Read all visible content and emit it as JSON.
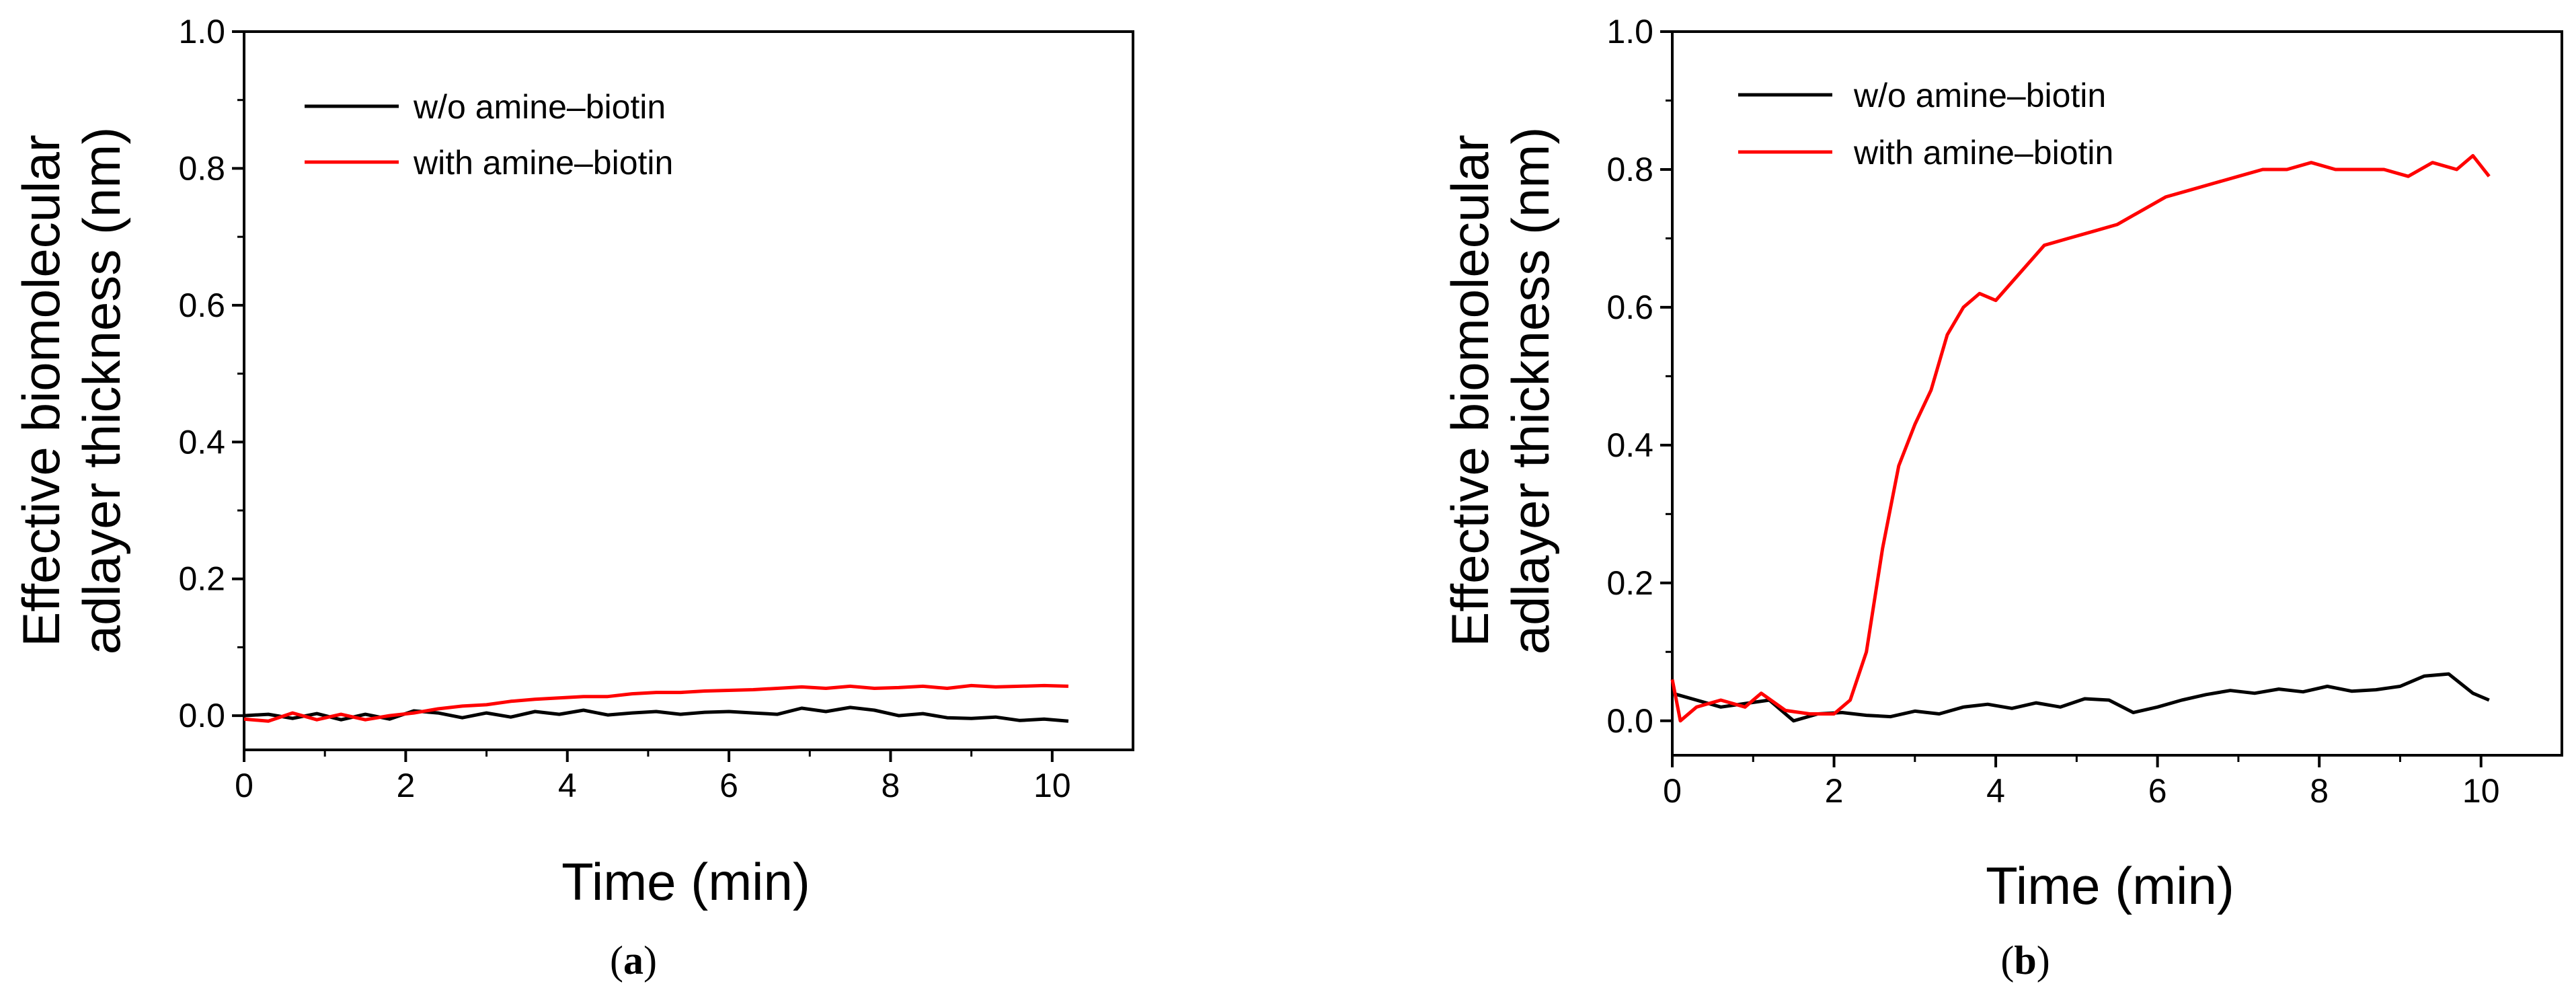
{
  "chart_data": [
    {
      "type": "line",
      "panel_label": "a",
      "xlabel": "Time (min)",
      "ylabel_line1": "Effective biomolecular",
      "ylabel_line2": "adlayer thickness (nm)",
      "xlim": [
        0,
        11
      ],
      "ylim": [
        -0.05,
        1.0
      ],
      "xticks": [
        "0",
        "2",
        "4",
        "6",
        "8",
        "10"
      ],
      "yticks": [
        "0.0",
        "0.2",
        "0.4",
        "0.6",
        "0.8",
        "1.0"
      ],
      "legend_position": "top-left",
      "grid": false,
      "series": [
        {
          "name": "w/o amine–biotin",
          "color": "#000000",
          "x": [
            0,
            0.3,
            0.6,
            0.9,
            1.2,
            1.5,
            1.8,
            2.1,
            2.4,
            2.7,
            3.0,
            3.3,
            3.6,
            3.9,
            4.2,
            4.5,
            4.8,
            5.1,
            5.4,
            5.7,
            6.0,
            6.3,
            6.6,
            6.9,
            7.2,
            7.5,
            7.8,
            8.1,
            8.4,
            8.7,
            9.0,
            9.3,
            9.6,
            9.9,
            10.2
          ],
          "y": [
            0.0,
            0.002,
            -0.004,
            0.003,
            -0.006,
            0.002,
            -0.005,
            0.007,
            0.004,
            -0.003,
            0.004,
            -0.002,
            0.006,
            0.002,
            0.008,
            0.001,
            0.004,
            0.006,
            0.002,
            0.005,
            0.006,
            0.004,
            0.002,
            0.011,
            0.006,
            0.012,
            0.008,
            0.0,
            0.003,
            -0.003,
            -0.004,
            -0.002,
            -0.007,
            -0.005,
            -0.008
          ]
        },
        {
          "name": "with amine–biotin",
          "color": "#ff0000",
          "x": [
            0,
            0.3,
            0.6,
            0.9,
            1.2,
            1.5,
            1.8,
            2.1,
            2.4,
            2.7,
            3.0,
            3.3,
            3.6,
            3.9,
            4.2,
            4.5,
            4.8,
            5.1,
            5.4,
            5.7,
            6.0,
            6.3,
            6.6,
            6.9,
            7.2,
            7.5,
            7.8,
            8.1,
            8.4,
            8.7,
            9.0,
            9.3,
            9.6,
            9.9,
            10.2
          ],
          "y": [
            -0.005,
            -0.008,
            0.004,
            -0.006,
            0.002,
            -0.006,
            0.0,
            0.004,
            0.01,
            0.014,
            0.016,
            0.021,
            0.024,
            0.026,
            0.028,
            0.028,
            0.032,
            0.034,
            0.034,
            0.036,
            0.037,
            0.038,
            0.04,
            0.042,
            0.04,
            0.043,
            0.04,
            0.041,
            0.043,
            0.04,
            0.044,
            0.042,
            0.043,
            0.044,
            0.043
          ]
        }
      ]
    },
    {
      "type": "line",
      "panel_label": "b",
      "xlabel": "Time (min)",
      "ylabel_line1": "Effective biomolecular",
      "ylabel_line2": "adlayer thickness (nm)",
      "xlim": [
        0,
        11
      ],
      "ylim": [
        -0.05,
        1.0
      ],
      "xticks": [
        "0",
        "2",
        "4",
        "6",
        "8",
        "10"
      ],
      "yticks": [
        "0.0",
        "0.2",
        "0.4",
        "0.6",
        "0.8",
        "1.0"
      ],
      "legend_position": "top-left",
      "grid": false,
      "series": [
        {
          "name": "w/o amine–biotin",
          "color": "#000000",
          "x": [
            0,
            0.3,
            0.6,
            0.9,
            1.2,
            1.5,
            1.8,
            2.1,
            2.4,
            2.7,
            3.0,
            3.3,
            3.6,
            3.9,
            4.2,
            4.5,
            4.8,
            5.1,
            5.4,
            5.7,
            6.0,
            6.3,
            6.6,
            6.9,
            7.2,
            7.5,
            7.8,
            8.1,
            8.4,
            8.7,
            9.0,
            9.3,
            9.6,
            9.9,
            10.1
          ],
          "y": [
            0.04,
            0.03,
            0.02,
            0.025,
            0.03,
            0.0,
            0.01,
            0.012,
            0.008,
            0.006,
            0.014,
            0.01,
            0.02,
            0.024,
            0.018,
            0.026,
            0.02,
            0.032,
            0.03,
            0.012,
            0.02,
            0.03,
            0.038,
            0.044,
            0.04,
            0.046,
            0.042,
            0.05,
            0.043,
            0.045,
            0.05,
            0.065,
            0.068,
            0.04,
            0.03
          ]
        },
        {
          "name": "with amine–biotin",
          "color": "#ff0000",
          "x": [
            0,
            0.1,
            0.3,
            0.6,
            0.9,
            1.1,
            1.4,
            1.7,
            2.0,
            2.2,
            2.4,
            2.6,
            2.8,
            3.0,
            3.2,
            3.4,
            3.6,
            3.8,
            4.0,
            4.3,
            4.6,
            4.9,
            5.2,
            5.5,
            5.8,
            6.1,
            6.4,
            6.7,
            7.0,
            7.3,
            7.6,
            7.9,
            8.2,
            8.5,
            8.8,
            9.1,
            9.4,
            9.7,
            9.9,
            10.1
          ],
          "y": [
            0.06,
            0.0,
            0.02,
            0.03,
            0.02,
            0.04,
            0.015,
            0.01,
            0.01,
            0.03,
            0.1,
            0.25,
            0.37,
            0.43,
            0.48,
            0.56,
            0.6,
            0.62,
            0.61,
            0.65,
            0.69,
            0.7,
            0.71,
            0.72,
            0.74,
            0.76,
            0.77,
            0.78,
            0.79,
            0.8,
            0.8,
            0.81,
            0.8,
            0.8,
            0.8,
            0.79,
            0.81,
            0.8,
            0.82,
            0.79
          ]
        }
      ]
    }
  ]
}
